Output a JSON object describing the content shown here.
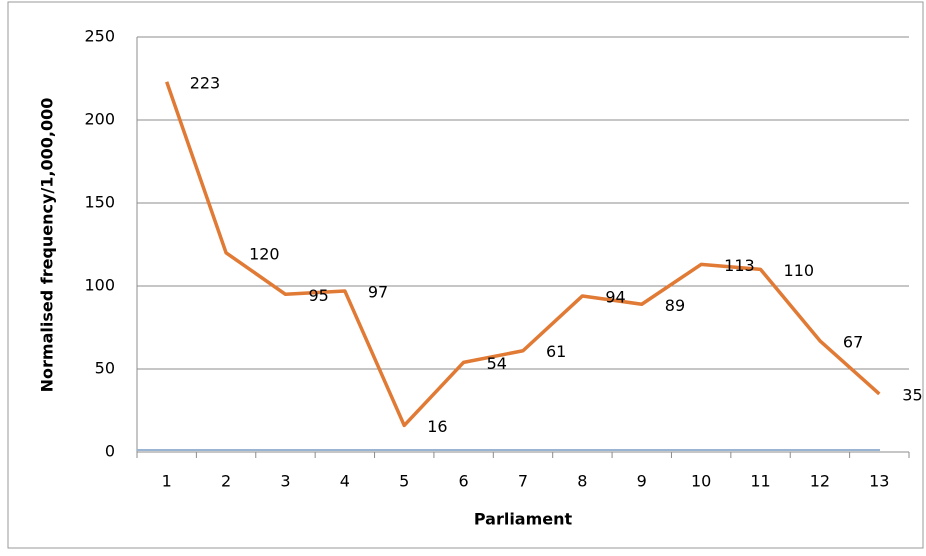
{
  "chart_data": {
    "type": "line",
    "x_label": "Parliament",
    "y_label": "Normalised frequency/1,000,000",
    "categories": [
      "1",
      "2",
      "3",
      "4",
      "5",
      "6",
      "7",
      "8",
      "9",
      "10",
      "11",
      "12",
      "13"
    ],
    "series": [
      {
        "color": "#e07a35",
        "values": [
          223,
          120,
          95,
          97,
          16,
          54,
          61,
          94,
          89,
          113,
          110,
          67,
          35
        ]
      }
    ],
    "ylim": [
      0,
      250
    ],
    "yticks": [
      0,
      50,
      100,
      150,
      200,
      250
    ],
    "grid": true
  }
}
